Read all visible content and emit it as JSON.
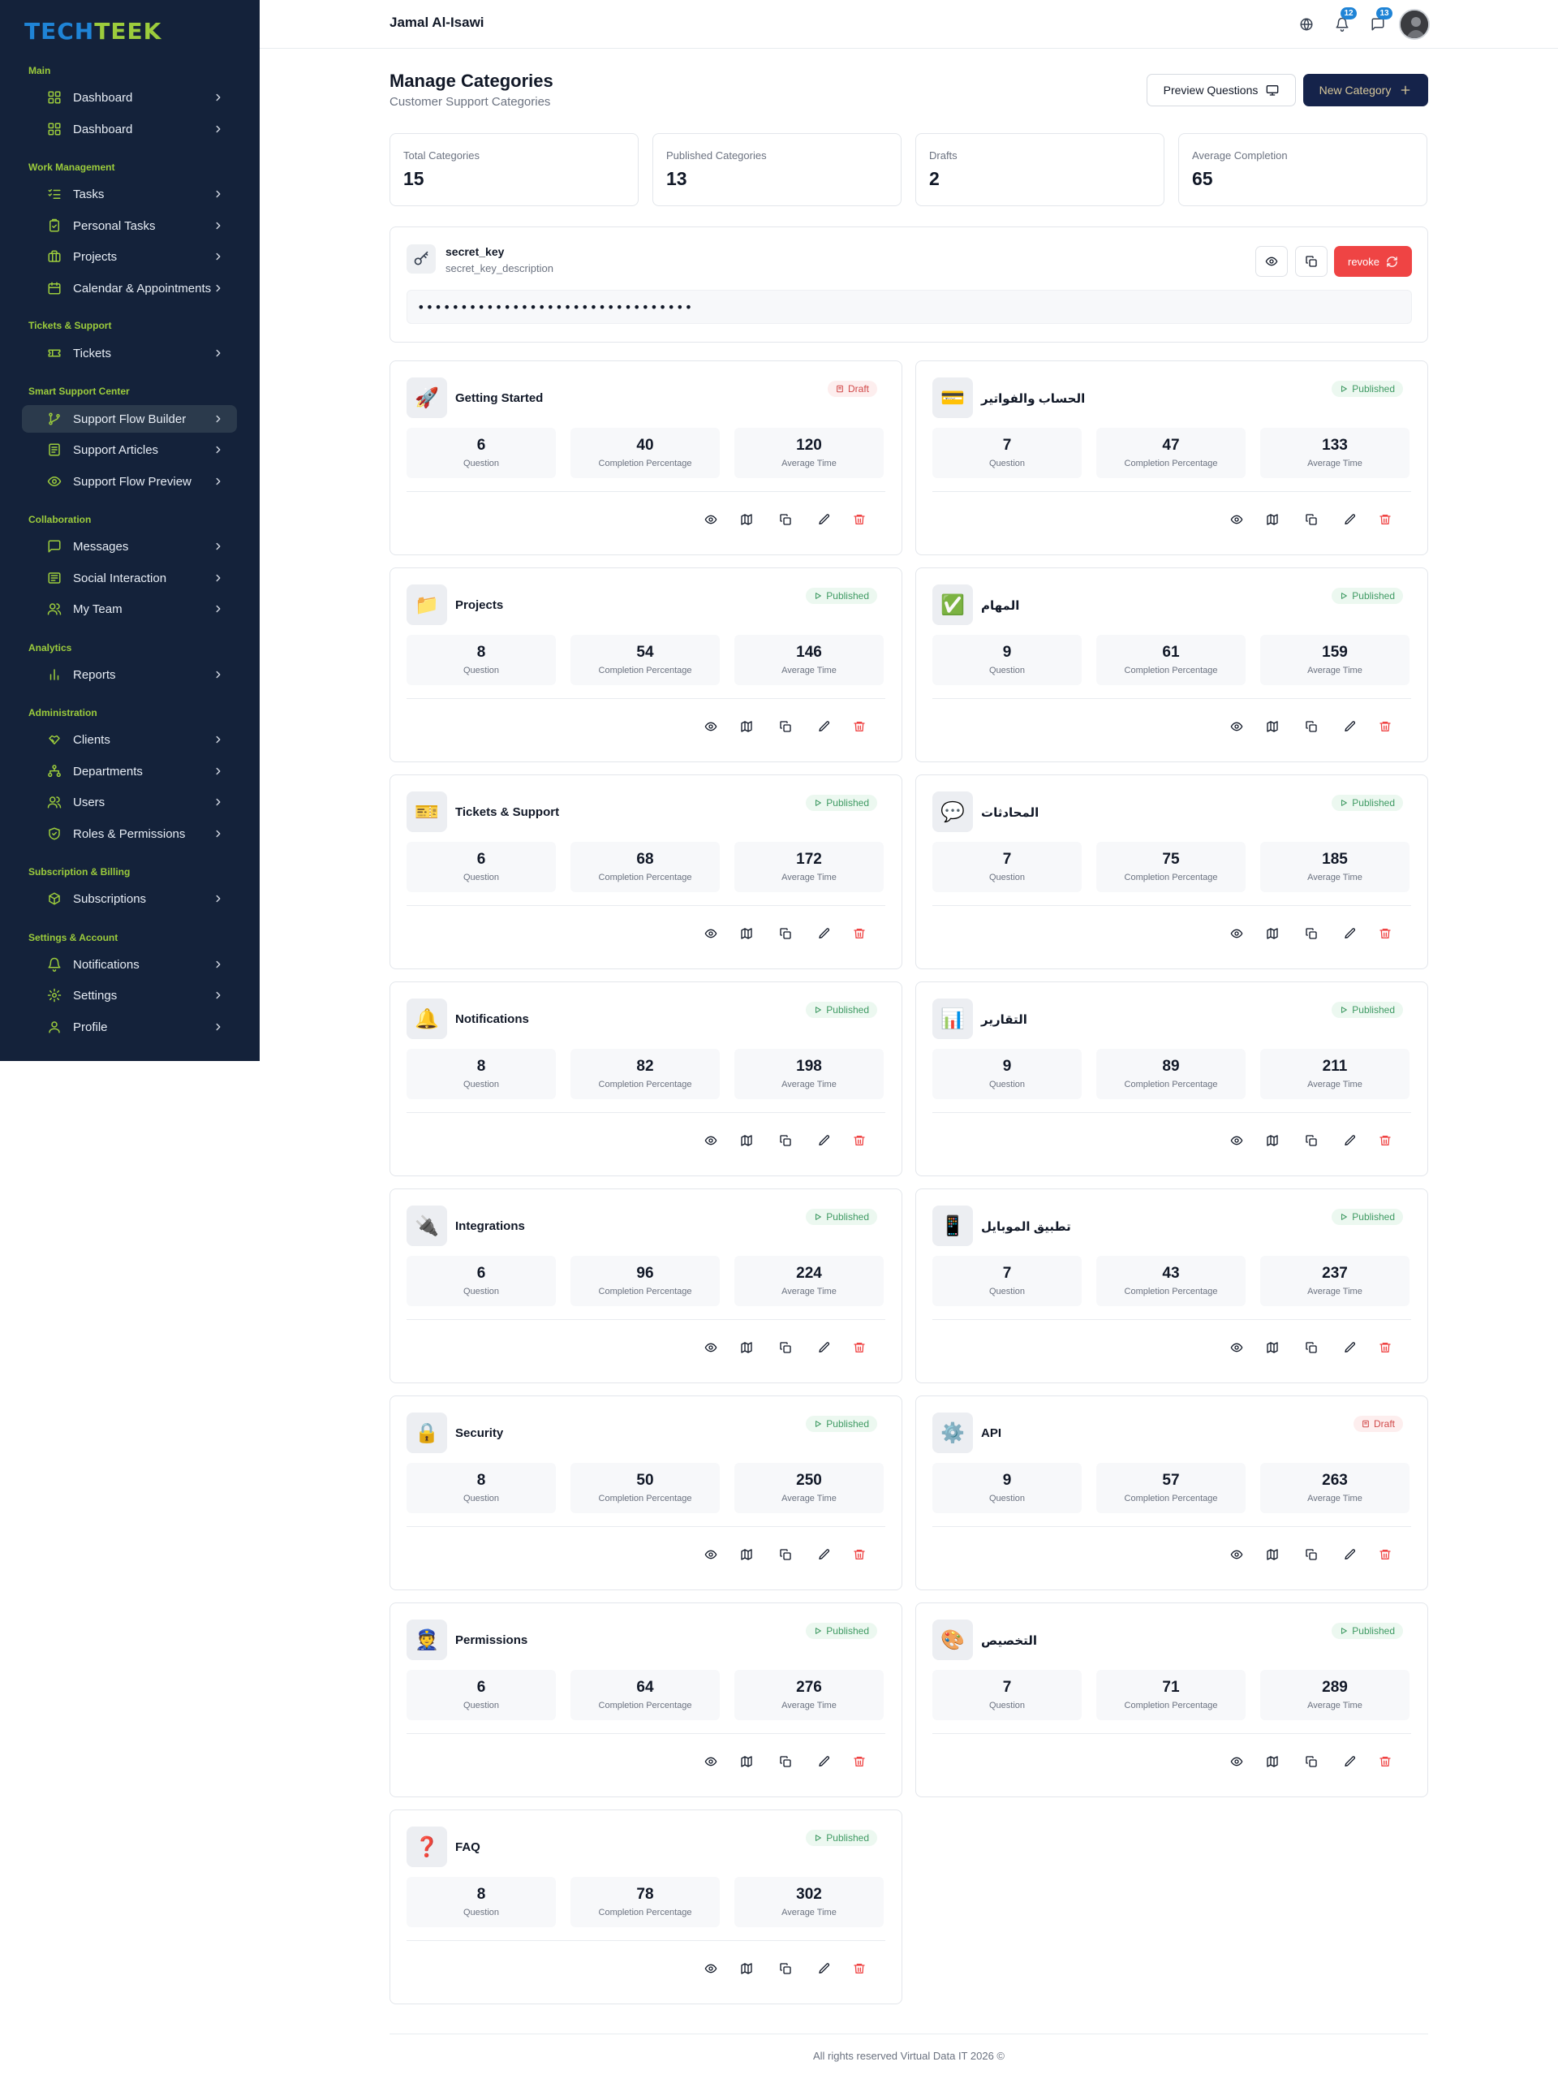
{
  "brand": {
    "logo_part1": "TECH",
    "logo_part2": "TEEK",
    "primary_color": "#1f84d6",
    "accent_color": "#9ccc3c",
    "sidebar_color": "#14223a"
  },
  "sidebar": {
    "sections": [
      {
        "label": "Main",
        "items": [
          {
            "label": "Dashboard",
            "icon": "dashboard-icon"
          },
          {
            "label": "Dashboard",
            "icon": "dashboard-icon"
          }
        ]
      },
      {
        "label": "Work Management",
        "items": [
          {
            "label": "Tasks",
            "icon": "list-check-icon"
          },
          {
            "label": "Personal Tasks",
            "icon": "clipboard-check-icon"
          },
          {
            "label": "Projects",
            "icon": "briefcase-icon"
          },
          {
            "label": "Calendar & Appointments",
            "icon": "calendar-icon"
          }
        ]
      },
      {
        "label": "Tickets & Support",
        "items": [
          {
            "label": "Tickets",
            "icon": "ticket-icon"
          }
        ]
      },
      {
        "label": "Smart Support Center",
        "items": [
          {
            "label": "Support Flow Builder",
            "icon": "git-branch-icon",
            "active": true
          },
          {
            "label": "Support Articles",
            "icon": "article-icon"
          },
          {
            "label": "Support Flow Preview",
            "icon": "eye-icon"
          }
        ]
      },
      {
        "label": "Collaboration",
        "items": [
          {
            "label": "Messages",
            "icon": "message-icon"
          },
          {
            "label": "Social Interaction",
            "icon": "newspaper-icon"
          },
          {
            "label": "My Team",
            "icon": "users-icon"
          }
        ]
      },
      {
        "label": "Analytics",
        "items": [
          {
            "label": "Reports",
            "icon": "bar-chart-icon"
          }
        ]
      },
      {
        "label": "Administration",
        "items": [
          {
            "label": "Clients",
            "icon": "handshake-icon"
          },
          {
            "label": "Departments",
            "icon": "org-chart-icon"
          },
          {
            "label": "Users",
            "icon": "users-icon"
          },
          {
            "label": "Roles & Permissions",
            "icon": "shield-check-icon"
          }
        ]
      },
      {
        "label": "Subscription & Billing",
        "items": [
          {
            "label": "Subscriptions",
            "icon": "package-icon"
          }
        ]
      },
      {
        "label": "Settings & Account",
        "items": [
          {
            "label": "Notifications",
            "icon": "bell-icon"
          },
          {
            "label": "Settings",
            "icon": "gear-icon"
          },
          {
            "label": "Profile",
            "icon": "user-icon"
          }
        ]
      }
    ]
  },
  "topbar": {
    "username": "Jamal Al-Isawi",
    "notifications_count": "12",
    "messages_count": "13"
  },
  "page": {
    "title": "Manage Categories",
    "subtitle": "Customer Support Categories",
    "preview_button": "Preview Questions",
    "new_button": "New Category"
  },
  "stats": [
    {
      "label": "Total Categories",
      "value": "15"
    },
    {
      "label": "Published Categories",
      "value": "13"
    },
    {
      "label": "Drafts",
      "value": "2"
    },
    {
      "label": "Average Completion",
      "value": "65"
    }
  ],
  "secret": {
    "title": "secret_key",
    "description": "secret_key_description",
    "masked_value": "••••••••••••••••••••••••••••••••",
    "revoke_label": "revoke"
  },
  "metric_labels": {
    "questions": "Question",
    "completion": "Completion Percentage",
    "time": "Average Time"
  },
  "categories": [
    {
      "title": "Getting Started",
      "emoji": "🚀",
      "status": "Draft",
      "questions": "6",
      "completion": "40",
      "time": "120"
    },
    {
      "title": "الحساب والفواتير",
      "emoji": "💳",
      "status": "Published",
      "questions": "7",
      "completion": "47",
      "time": "133"
    },
    {
      "title": "Projects",
      "emoji": "📁",
      "status": "Published",
      "questions": "8",
      "completion": "54",
      "time": "146"
    },
    {
      "title": "المهام",
      "emoji": "✅",
      "status": "Published",
      "questions": "9",
      "completion": "61",
      "time": "159"
    },
    {
      "title": "Tickets & Support",
      "emoji": "🎫",
      "status": "Published",
      "questions": "6",
      "completion": "68",
      "time": "172"
    },
    {
      "title": "المحادثات",
      "emoji": "💬",
      "status": "Published",
      "questions": "7",
      "completion": "75",
      "time": "185"
    },
    {
      "title": "Notifications",
      "emoji": "🔔",
      "status": "Published",
      "questions": "8",
      "completion": "82",
      "time": "198"
    },
    {
      "title": "التقارير",
      "emoji": "📊",
      "status": "Published",
      "questions": "9",
      "completion": "89",
      "time": "211"
    },
    {
      "title": "Integrations",
      "emoji": "🔌",
      "status": "Published",
      "questions": "6",
      "completion": "96",
      "time": "224"
    },
    {
      "title": "تطبيق الموبايل",
      "emoji": "📱",
      "status": "Published",
      "questions": "7",
      "completion": "43",
      "time": "237"
    },
    {
      "title": "Security",
      "emoji": "🔒",
      "status": "Published",
      "questions": "8",
      "completion": "50",
      "time": "250"
    },
    {
      "title": "API",
      "emoji": "⚙️",
      "status": "Draft",
      "questions": "9",
      "completion": "57",
      "time": "263"
    },
    {
      "title": "Permissions",
      "emoji": "👮",
      "status": "Published",
      "questions": "6",
      "completion": "64",
      "time": "276"
    },
    {
      "title": "التخصيص",
      "emoji": "🎨",
      "status": "Published",
      "questions": "7",
      "completion": "71",
      "time": "289"
    },
    {
      "title": "FAQ",
      "emoji": "❓",
      "status": "Published",
      "questions": "8",
      "completion": "78",
      "time": "302"
    }
  ],
  "footer": {
    "text": "All rights reserved Virtual Data IT 2026 ©"
  }
}
